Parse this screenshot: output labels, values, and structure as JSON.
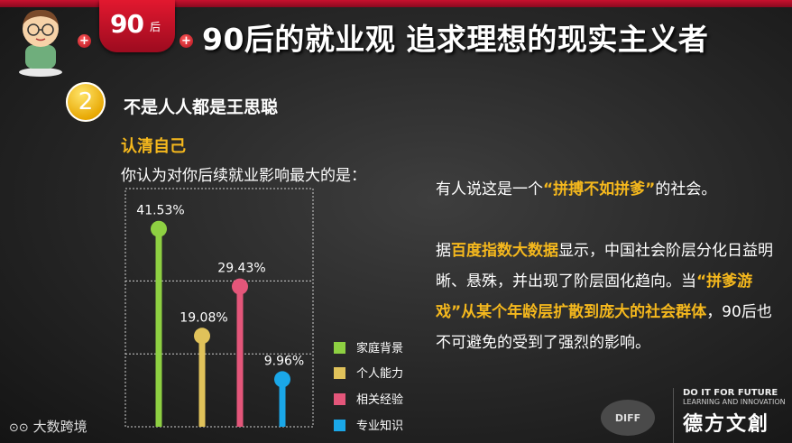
{
  "header": {
    "tab_num": "90",
    "tab_suffix": "后",
    "title": "90后的就业观 追求理想的现实主义者"
  },
  "section": {
    "number": "2",
    "title": "不是人人都是王思聪",
    "subtitle": "认清自己",
    "question": "你认为对你后续就业影响最大的是："
  },
  "chart_data": {
    "type": "lollipop",
    "categories": [
      "家庭背景",
      "个人能力",
      "相关经验",
      "专业知识"
    ],
    "values": [
      41.53,
      19.08,
      29.43,
      9.96
    ],
    "value_labels": [
      "41.53%",
      "19.08%",
      "29.43%",
      "9.96%"
    ],
    "colors": [
      "#8ed042",
      "#e0c25a",
      "#e4567a",
      "#1aa7e8"
    ],
    "ylim": [
      0,
      50
    ],
    "grid": true,
    "legend": "right"
  },
  "right_text": {
    "p1_a": "有人说这是一个",
    "p1_hl": "“拼搏不如拼爹”",
    "p1_b": "的社会。",
    "p2_a": "据",
    "p2_hl1": "百度指数大数据",
    "p2_b": "显示，中国社会阶层分化日益明晰、悬殊，并出现了阶层固化趋向。当",
    "p2_hl2": "“拼爹游戏”从某个年龄层扩散到庞大的社会群体",
    "p2_c": "，90后也不可避免的受到了强烈的影响。"
  },
  "footer": {
    "left_logo": "大数跨境",
    "right_en1": "DO IT FOR FUTURE",
    "right_en2": "LEARNING AND INNOVATION",
    "right_cn": "德方文創",
    "badge_text": "DIFF"
  }
}
